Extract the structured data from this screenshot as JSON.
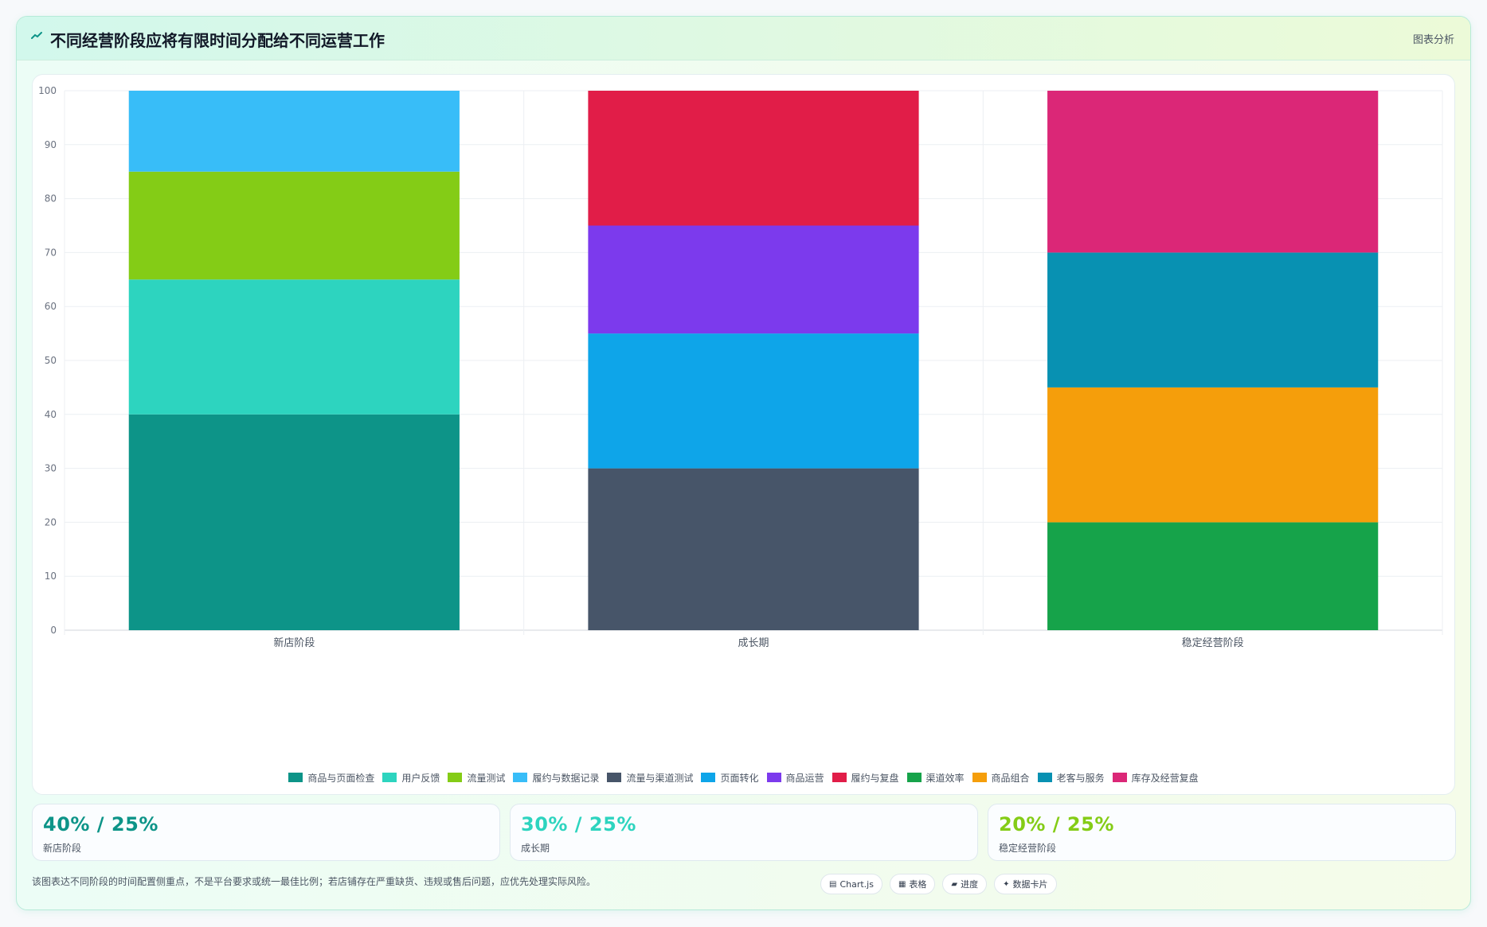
{
  "header": {
    "title": "不同经营阶段应将有限时间分配给不同运营工作",
    "tag": "图表分析"
  },
  "chart_data": {
    "type": "bar",
    "stacked": true,
    "categories": [
      "新店阶段",
      "成长期",
      "稳定经营阶段"
    ],
    "ylim": [
      0,
      100
    ],
    "yticks": [
      0,
      10,
      20,
      30,
      40,
      50,
      60,
      70,
      80,
      90,
      100
    ],
    "grid": true,
    "legend_position": "bottom",
    "series": [
      {
        "name": "商品与页面检查",
        "color": "#0d9488",
        "values": [
          40,
          0,
          0
        ]
      },
      {
        "name": "用户反馈",
        "color": "#2dd4bf",
        "values": [
          25,
          0,
          0
        ]
      },
      {
        "name": "流量测试",
        "color": "#84cc16",
        "values": [
          20,
          0,
          0
        ]
      },
      {
        "name": "履约与数据记录",
        "color": "#38bdf8",
        "values": [
          15,
          0,
          0
        ]
      },
      {
        "name": "流量与渠道测试",
        "color": "#475569",
        "values": [
          0,
          30,
          0
        ]
      },
      {
        "name": "页面转化",
        "color": "#0ea5e9",
        "values": [
          0,
          25,
          0
        ]
      },
      {
        "name": "商品运营",
        "color": "#7c3aed",
        "values": [
          0,
          20,
          0
        ]
      },
      {
        "name": "履约与复盘",
        "color": "#e11d48",
        "values": [
          0,
          25,
          0
        ]
      },
      {
        "name": "渠道效率",
        "color": "#16a34a",
        "values": [
          0,
          0,
          20
        ]
      },
      {
        "name": "商品组合",
        "color": "#f59e0b",
        "values": [
          0,
          0,
          25
        ]
      },
      {
        "name": "老客与服务",
        "color": "#0891b2",
        "values": [
          0,
          0,
          25
        ]
      },
      {
        "name": "库存及经营复盘",
        "color": "#db2777",
        "values": [
          0,
          0,
          30
        ]
      }
    ]
  },
  "stats": [
    {
      "value": "40% / 25%",
      "label": "新店阶段",
      "color": "#0d9488"
    },
    {
      "value": "30% / 25%",
      "label": "成长期",
      "color": "#2dd4bf"
    },
    {
      "value": "20% / 25%",
      "label": "稳定经营阶段",
      "color": "#84cc16"
    }
  ],
  "footnote": "该图表达不同阶段的时间配置侧重点，不是平台要求或统一最佳比例；若店铺存在严重缺货、违规或售后问题，应优先处理实际风险。",
  "chips": [
    {
      "icon": "▤",
      "label": "Chart.js",
      "icon_name": "chart-icon"
    },
    {
      "icon": "▦",
      "label": "表格",
      "icon_name": "table-icon"
    },
    {
      "icon": "▰",
      "label": "进度",
      "icon_name": "progress-icon"
    },
    {
      "icon": "✦",
      "label": "数据卡片",
      "icon_name": "sparkle-icon"
    }
  ]
}
